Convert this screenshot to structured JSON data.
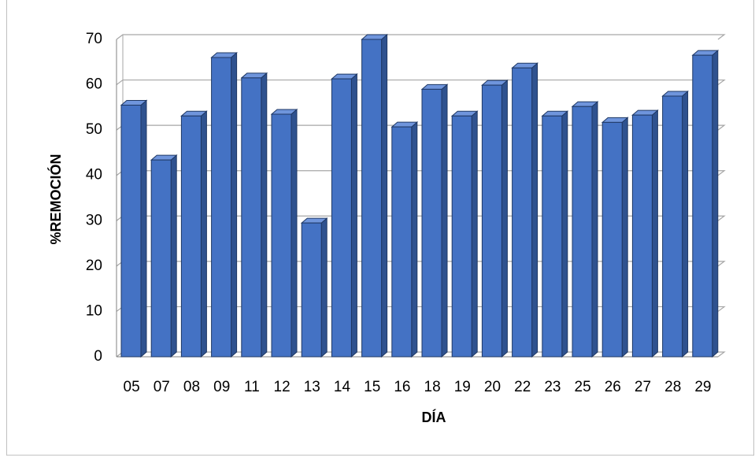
{
  "chart_data": {
    "type": "bar3d",
    "categories": [
      "05",
      "07",
      "08",
      "09",
      "11",
      "12",
      "13",
      "14",
      "15",
      "16",
      "18",
      "19",
      "20",
      "22",
      "23",
      "25",
      "26",
      "27",
      "28",
      "29"
    ],
    "values": [
      55.5,
      43.4,
      53.1,
      66,
      61.5,
      53.5,
      29.5,
      61.3,
      70,
      50.7,
      59,
      53.1,
      59.9,
      63.7,
      53.1,
      55.2,
      51.7,
      53.3,
      57.5,
      66.5
    ],
    "color": "#4472c4",
    "ylim": [
      0,
      70
    ],
    "yticks": [
      0,
      10,
      20,
      30,
      40,
      50,
      60,
      70
    ],
    "grid": true,
    "xlabel": "DÍA",
    "ylabel": "%REMOCIÓN"
  }
}
